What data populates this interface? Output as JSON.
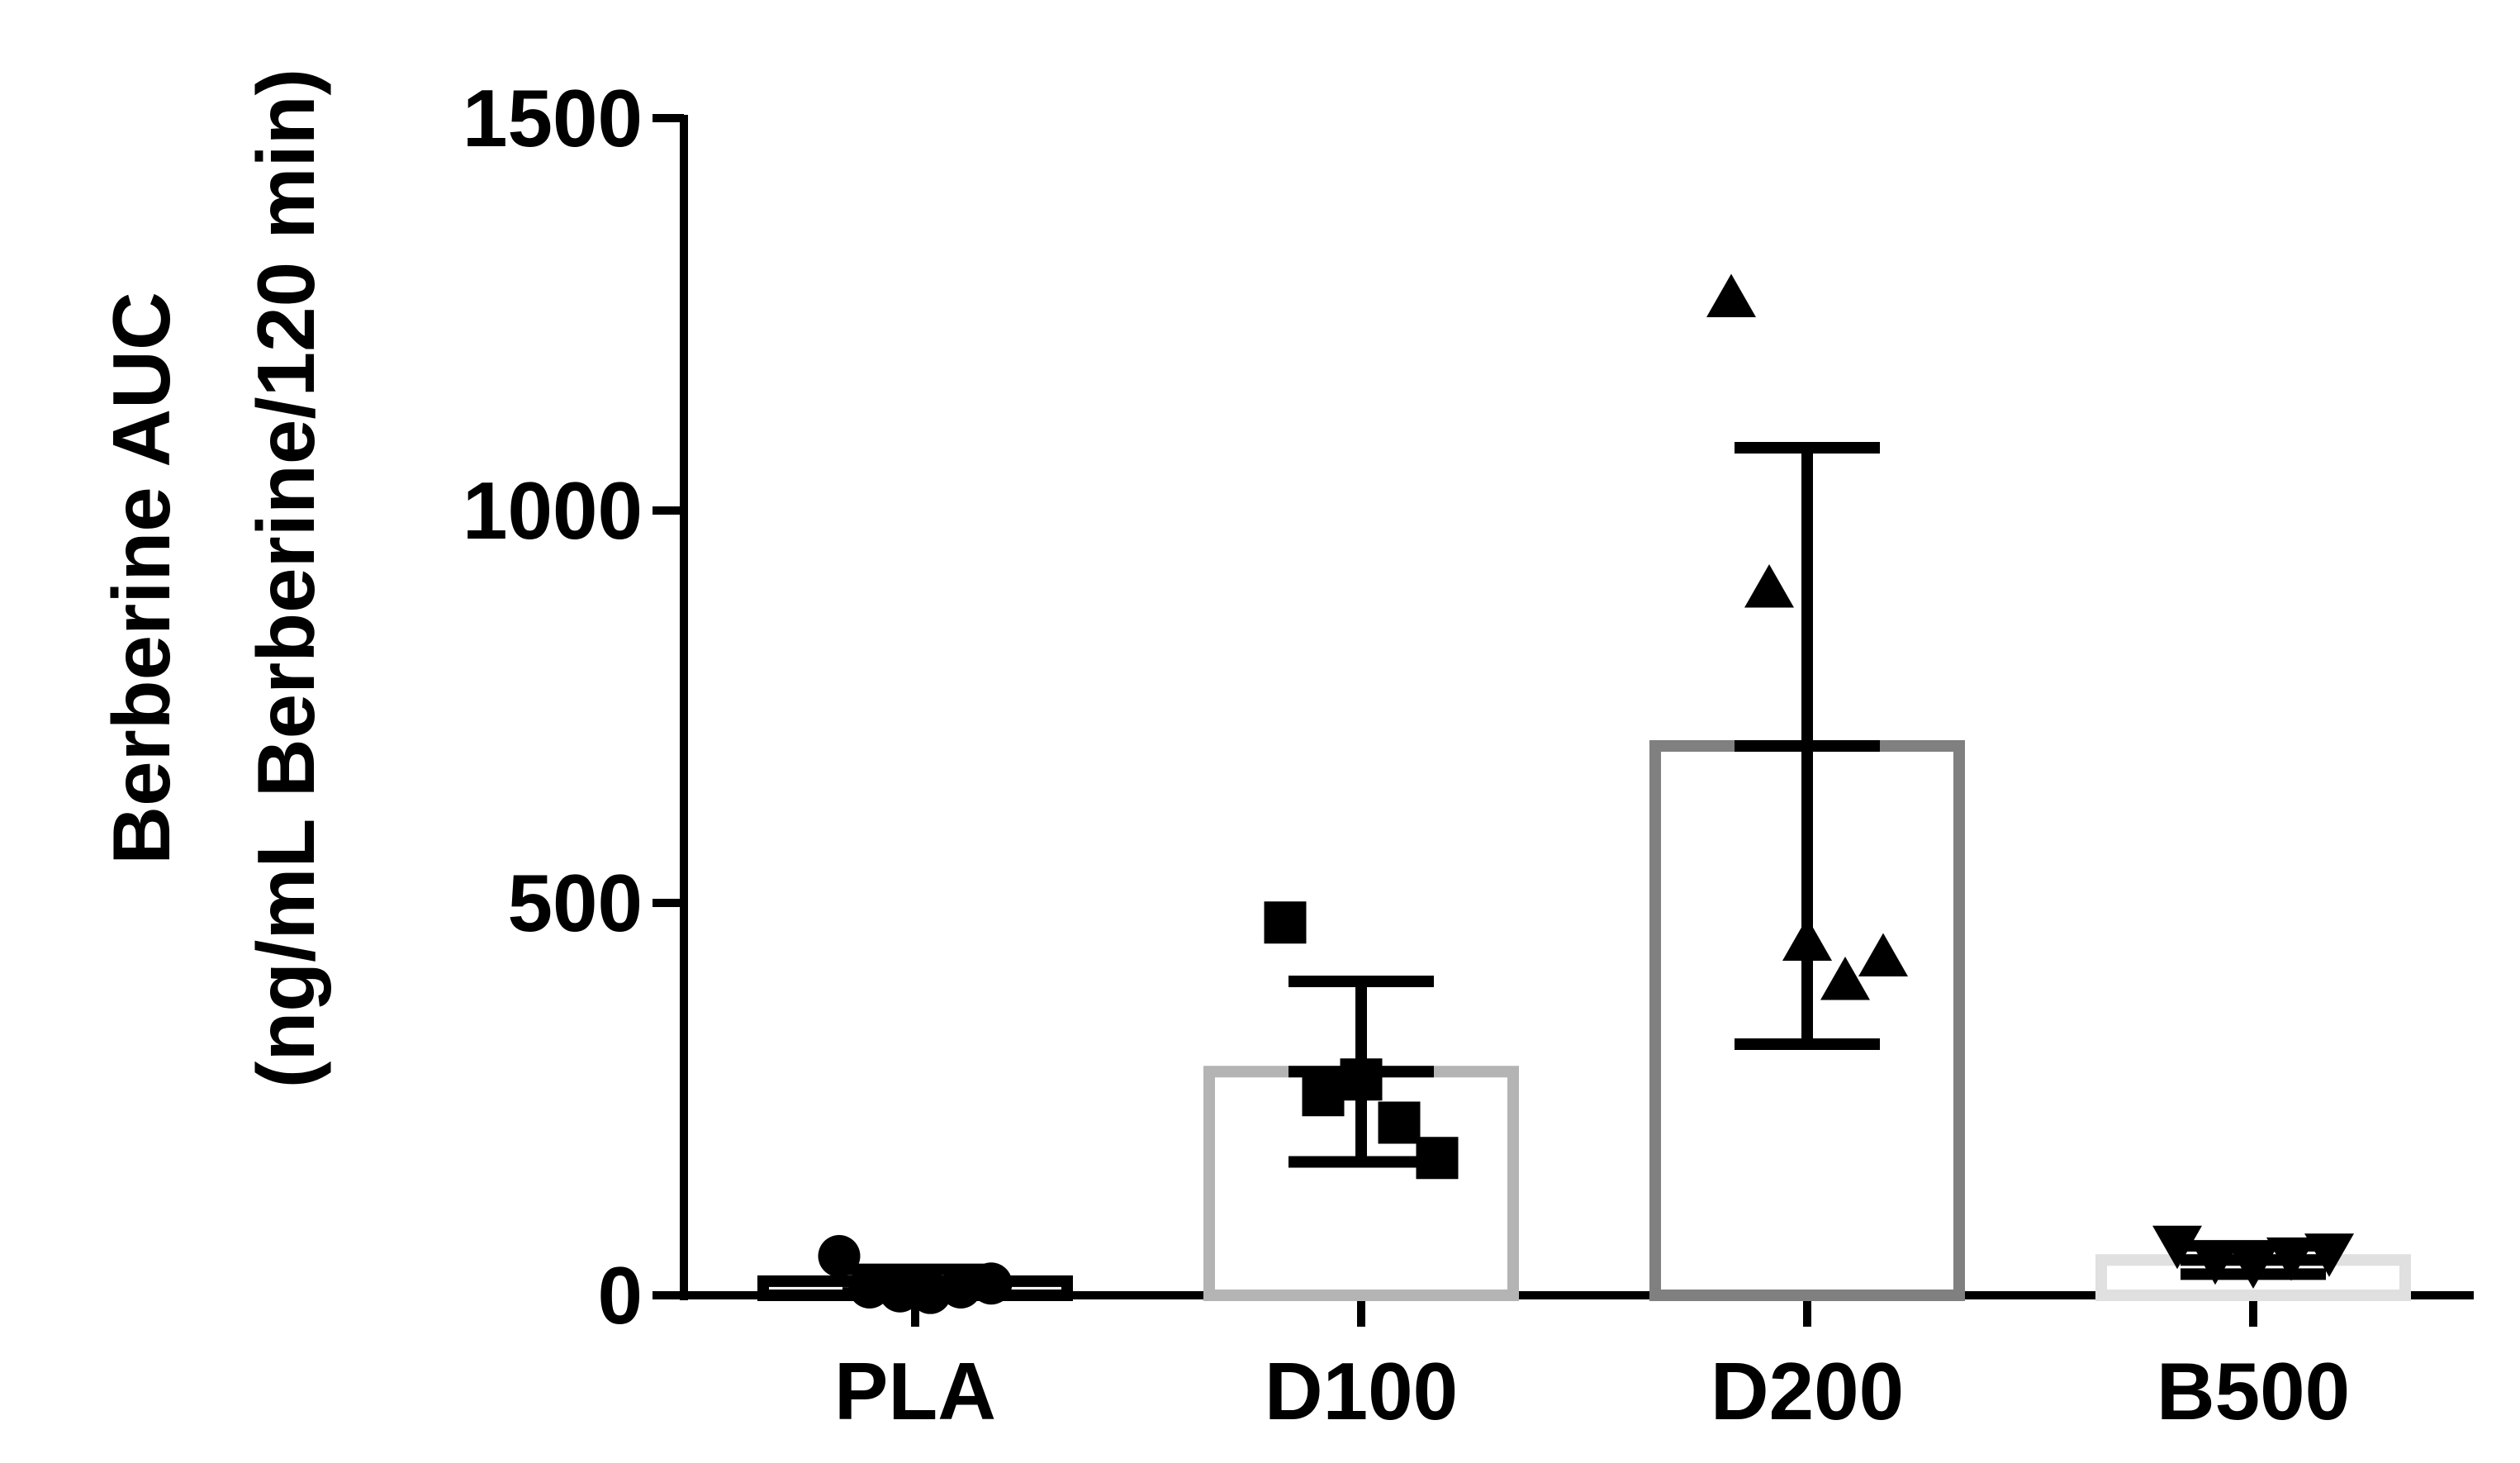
{
  "chart_data": {
    "type": "bar",
    "title": "",
    "xlabel": "",
    "ylabel_line1": "Berberine AUC",
    "ylabel_line2": "(ng/mL  Berberine/120 min)",
    "ylim": [
      0,
      1500
    ],
    "yticks": [
      0,
      500,
      1000,
      1500
    ],
    "ytick_labels": [
      "0",
      "500",
      "1000",
      "1500"
    ],
    "grid": false,
    "legend": "none",
    "categories": [
      "PLA",
      "D100",
      "D200",
      "B500"
    ],
    "bar_colors": [
      "#000000",
      "#b4b4b4",
      "#808080",
      "#e0e0e0"
    ],
    "marker_color": "#000000",
    "error_color": "#000000",
    "groups": [
      {
        "name": "PLA",
        "mean": 18,
        "sd": 15,
        "marker": "circle",
        "points": [
          50,
          10,
          5,
          3,
          10,
          15
        ]
      },
      {
        "name": "D100",
        "mean": 285,
        "sd": 115,
        "marker": "square",
        "points": [
          475,
          255,
          275,
          220,
          175
        ]
      },
      {
        "name": "D200",
        "mean": 700,
        "sd": 380,
        "marker": "triangle-up",
        "points": [
          1270,
          900,
          450,
          400,
          430
        ]
      },
      {
        "name": "B500",
        "mean": 45,
        "sd": 18,
        "marker": "triangle-down",
        "points": [
          65,
          45,
          40,
          50,
          55
        ]
      }
    ]
  }
}
